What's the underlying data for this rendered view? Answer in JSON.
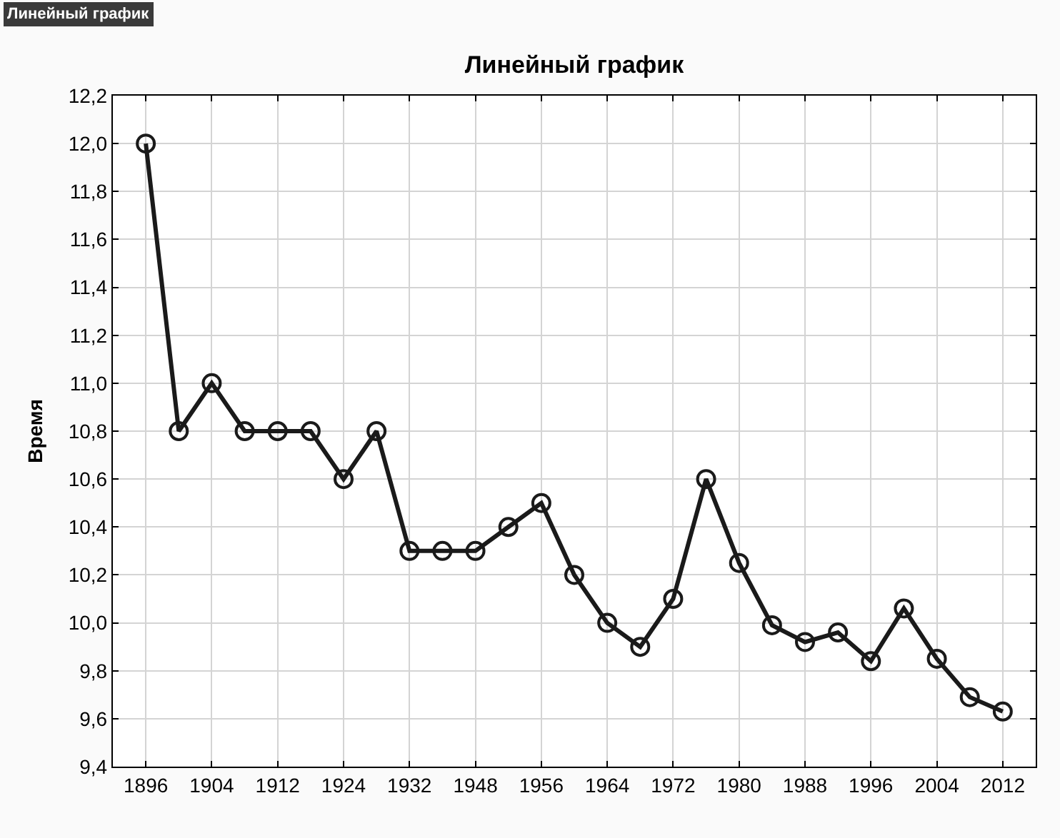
{
  "chart_data": {
    "type": "line",
    "title": "Линейный график",
    "ylabel": "Время",
    "annotations": [
      "Линейный график"
    ],
    "categories": [
      "1896",
      null,
      "1904",
      null,
      "1912",
      null,
      "1924",
      null,
      "1932",
      null,
      "1948",
      null,
      "1956",
      null,
      "1964",
      null,
      "1972",
      null,
      "1980",
      null,
      "1988",
      null,
      "1996",
      null,
      "2004",
      null,
      "2012"
    ],
    "series": [
      {
        "color": "#1a1a1a",
        "values": [
          12.0,
          10.8,
          11.0,
          10.8,
          10.8,
          10.8,
          10.6,
          10.8,
          10.3,
          10.3,
          10.3,
          10.4,
          10.5,
          10.2,
          10.0,
          9.9,
          10.1,
          10.6,
          10.25,
          9.99,
          9.92,
          9.96,
          9.84,
          10.06,
          9.85,
          9.69,
          9.63
        ]
      }
    ],
    "ylim": [
      9.4,
      12.2
    ],
    "yticks": [
      {
        "value": 9.4,
        "label": "9,4"
      },
      {
        "value": 9.6,
        "label": "9,6"
      },
      {
        "value": 9.8,
        "label": "9,8"
      },
      {
        "value": 10.0,
        "label": "10,0"
      },
      {
        "value": 10.2,
        "label": "10,2"
      },
      {
        "value": 10.4,
        "label": "10,4"
      },
      {
        "value": 10.6,
        "label": "10,6"
      },
      {
        "value": 10.8,
        "label": "10,8"
      },
      {
        "value": 11.0,
        "label": "11,0"
      },
      {
        "value": 11.2,
        "label": "11,2"
      },
      {
        "value": 11.4,
        "label": "11,4"
      },
      {
        "value": 11.6,
        "label": "11,6"
      },
      {
        "value": 11.8,
        "label": "11,8"
      },
      {
        "value": 12.0,
        "label": "12,0"
      },
      {
        "value": 12.2,
        "label": "12,2"
      }
    ],
    "grid": true,
    "marker": "circle",
    "line_style": "solid"
  }
}
